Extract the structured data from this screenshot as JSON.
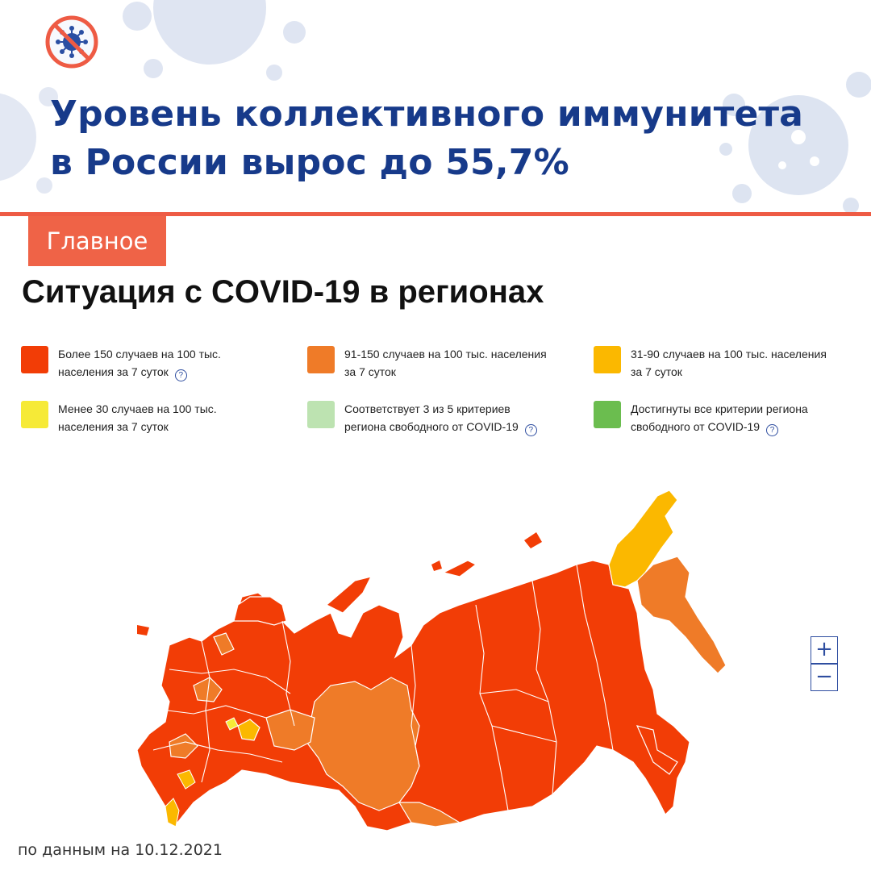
{
  "header": {
    "logo_icon": "no-virus-icon",
    "title_line1": "Уровень коллективного иммунитета",
    "title_line2": "в России вырос до 55,7%"
  },
  "tag": {
    "label": "Главное"
  },
  "section": {
    "title": "Ситуация с COVID-19 в регионах"
  },
  "legend": [
    {
      "color": "#f23d06",
      "line1": "Более 150 случаев на 100 тыс.",
      "line2": "населения за 7 суток",
      "help": true
    },
    {
      "color": "#ef7b28",
      "line1": "91-150 случаев на 100 тыс. населения",
      "line2": "за 7 суток",
      "help": false
    },
    {
      "color": "#fbb800",
      "line1": "31-90 случаев на 100 тыс. населения",
      "line2": "за 7 суток",
      "help": false
    },
    {
      "color": "#f6ea37",
      "line1": "Менее 30 случаев на 100 тыс.",
      "line2": "населения за 7 суток",
      "help": false
    },
    {
      "color": "#bde3b1",
      "line1": "Соответствует 3 из 5 критериев",
      "line2": "региона свободного от COVID-19",
      "help": true
    },
    {
      "color": "#6bbd4f",
      "line1": "Достигнуты все критерии региона",
      "line2": "свободного от COVID-19",
      "help": true
    }
  ],
  "help_symbol": "?",
  "map": {
    "colors": {
      "high": "#f23d06",
      "mid": "#ef7b28",
      "low": "#fbb800",
      "lowest": "#f6ea37",
      "border": "#ffffff"
    }
  },
  "zoom": {
    "in": "+",
    "out": "−"
  },
  "footnote": "по данным на 10.12.2021"
}
